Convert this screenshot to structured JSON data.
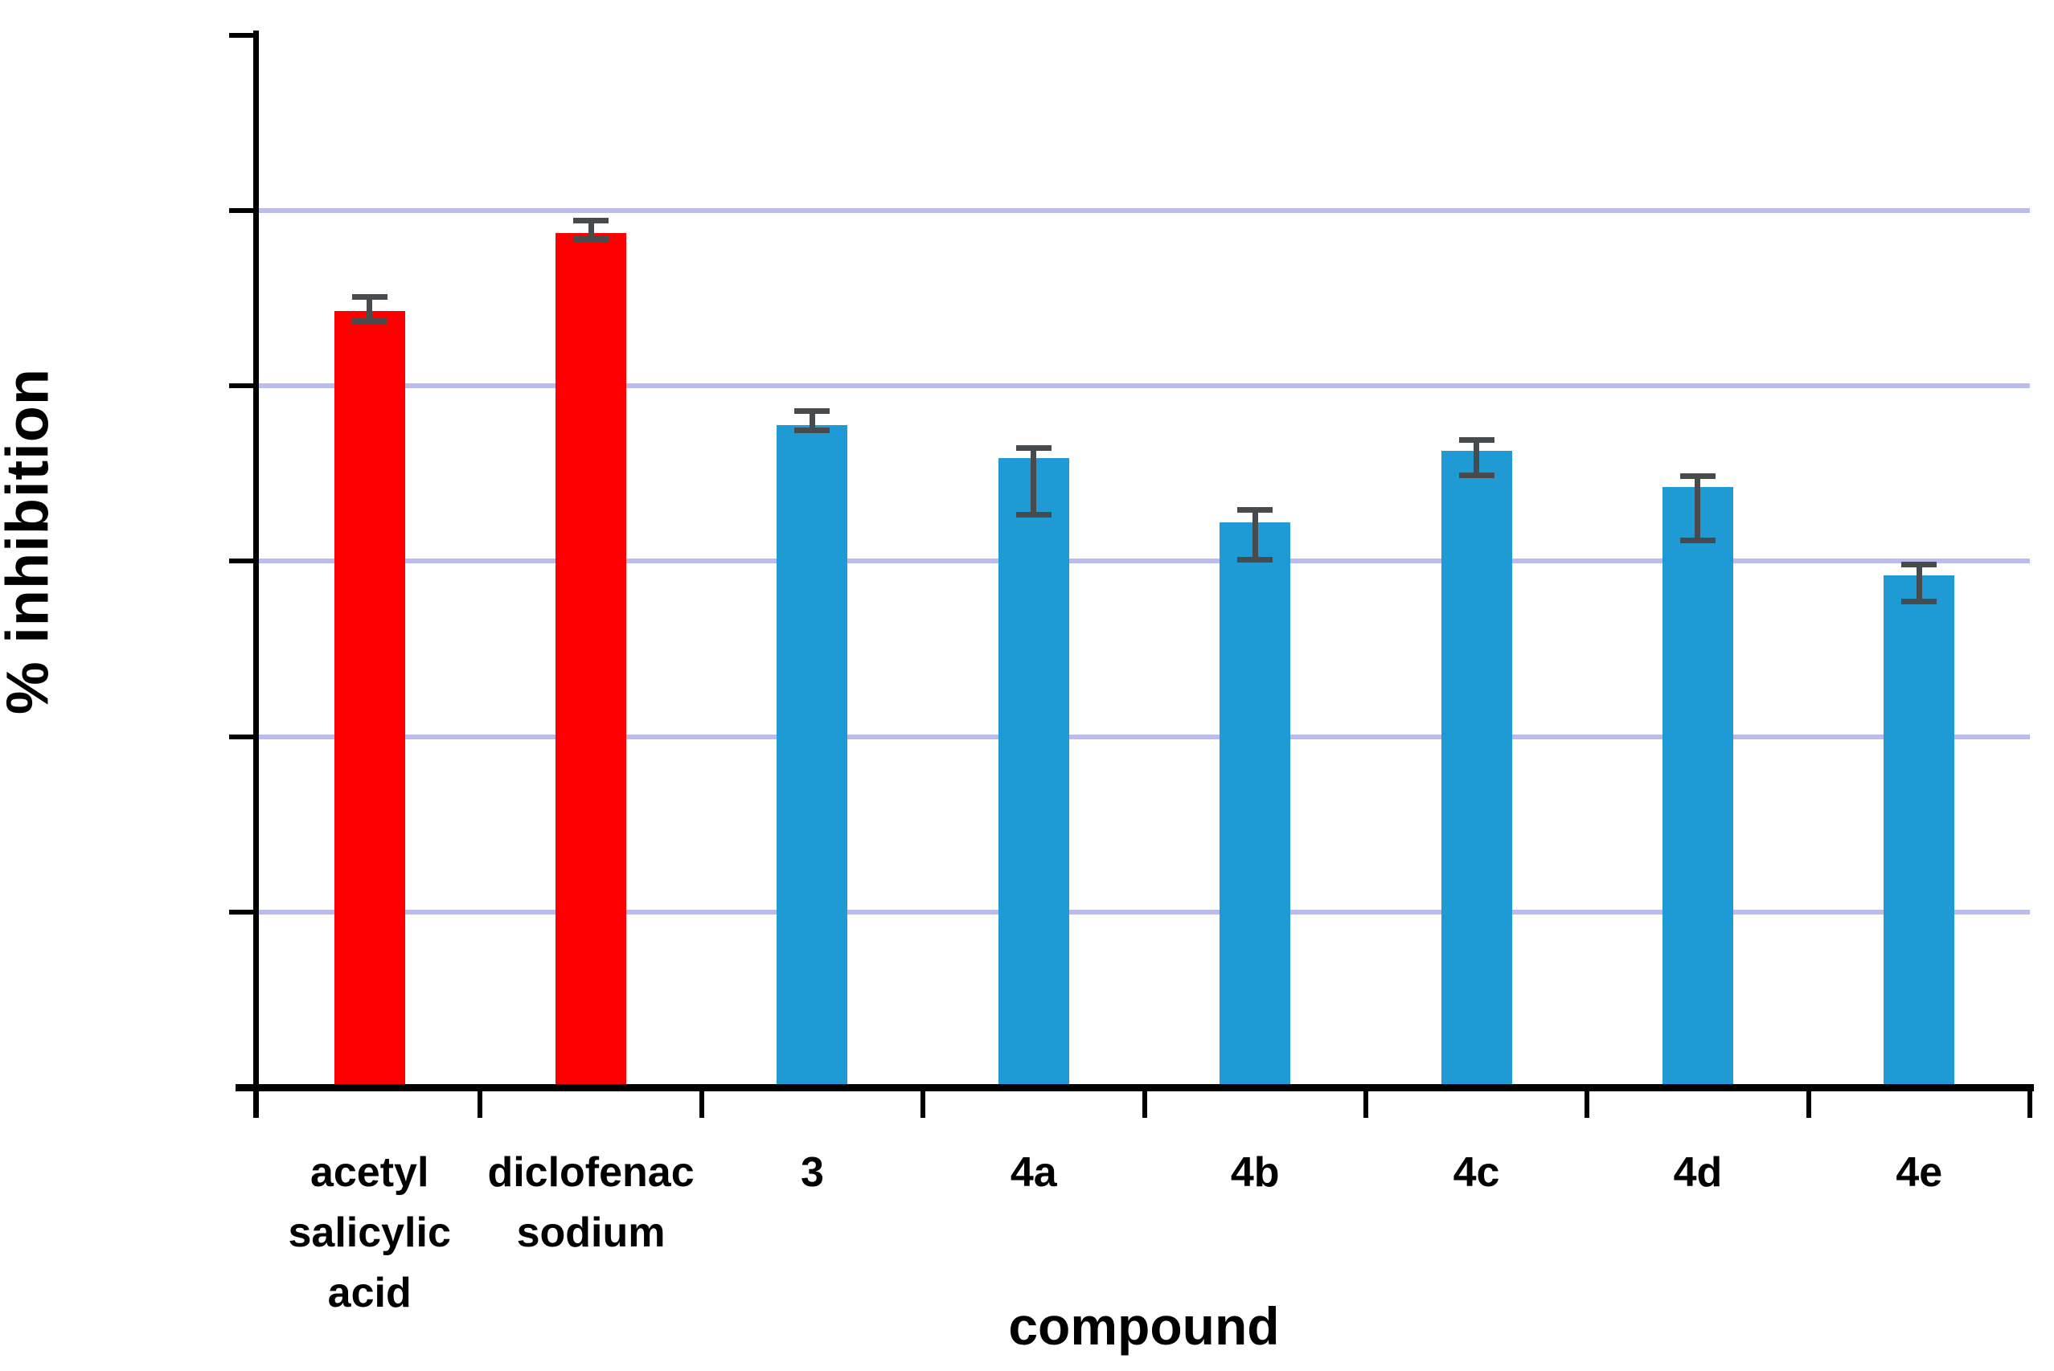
{
  "chart_data": {
    "type": "bar",
    "title": "",
    "xlabel": "compound",
    "ylabel": "% inhibition",
    "categories": [
      "acetyl\nsalicylic\nacid",
      "diclofenac\nsodium",
      "3",
      "4a",
      "4b",
      "4c",
      "4d",
      "4e"
    ],
    "values": [
      88.5,
      97.4,
      75.5,
      71.8,
      64.4,
      72.6,
      68.5,
      58.4
    ],
    "error_high": [
      90.0,
      98.7,
      77.0,
      72.8,
      65.7,
      73.7,
      69.6,
      59.5
    ],
    "error_low": [
      87.5,
      96.9,
      75.1,
      65.4,
      60.3,
      69.9,
      62.5,
      55.5
    ],
    "bar_colors": [
      "#ff0000",
      "#ff0000",
      "#1f9ad5",
      "#1f9ad5",
      "#1f9ad5",
      "#1f9ad5",
      "#1f9ad5",
      "#1f9ad5"
    ],
    "ylim": [
      0,
      120
    ],
    "y_ticks": [
      0,
      20,
      40,
      60,
      80,
      100,
      120
    ],
    "gridline_values": [
      20,
      40,
      60,
      80,
      100
    ],
    "grid": true,
    "legend_position": "none",
    "colors": {
      "reference_bar": "#ff0000",
      "compound_bar": "#1f9ad5",
      "gridline": "#b9bcec",
      "error_bar": "#474b4e",
      "axis": "#000000",
      "text": "#000000",
      "background": "#ffffff"
    }
  }
}
